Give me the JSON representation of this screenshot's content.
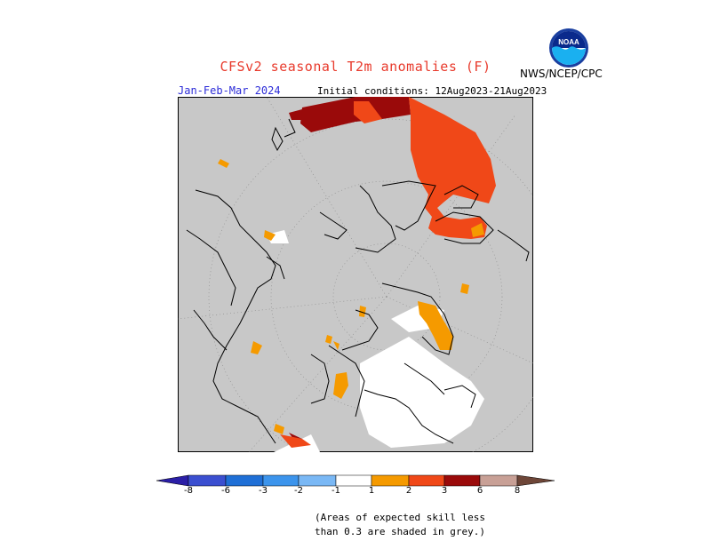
{
  "title": "CFSv2 seasonal T2m anomalies (F)",
  "agency": "NWS/NCEP/CPC",
  "logo_text": "NOAA",
  "period": "Jan-Feb-Mar 2024",
  "initial_conditions": "Initial conditions: 12Aug2023-21Aug2023",
  "colorbar": {
    "labels": [
      "-8",
      "-6",
      "-3",
      "-2",
      "-1",
      "1",
      "2",
      "3",
      "6",
      "8"
    ],
    "colors": [
      "#2b1fa6",
      "#3b4fd0",
      "#1f6fd6",
      "#3c94ec",
      "#7ab8f5",
      "#ffffff",
      "#f59a00",
      "#f04818",
      "#9a0a0a",
      "#c8a096",
      "#6e4638"
    ]
  },
  "note_line1": "(Areas of expected skill less",
  "note_line2": "than 0.3 are shaded in grey.)",
  "colors": {
    "mask_grey": "#c8c8c8",
    "anom_1_2": "#f59a00",
    "anom_2_3": "#f04818",
    "anom_3_6": "#9a0a0a",
    "title_red": "#e83a2c",
    "period_blue": "#2c2cd8"
  }
}
